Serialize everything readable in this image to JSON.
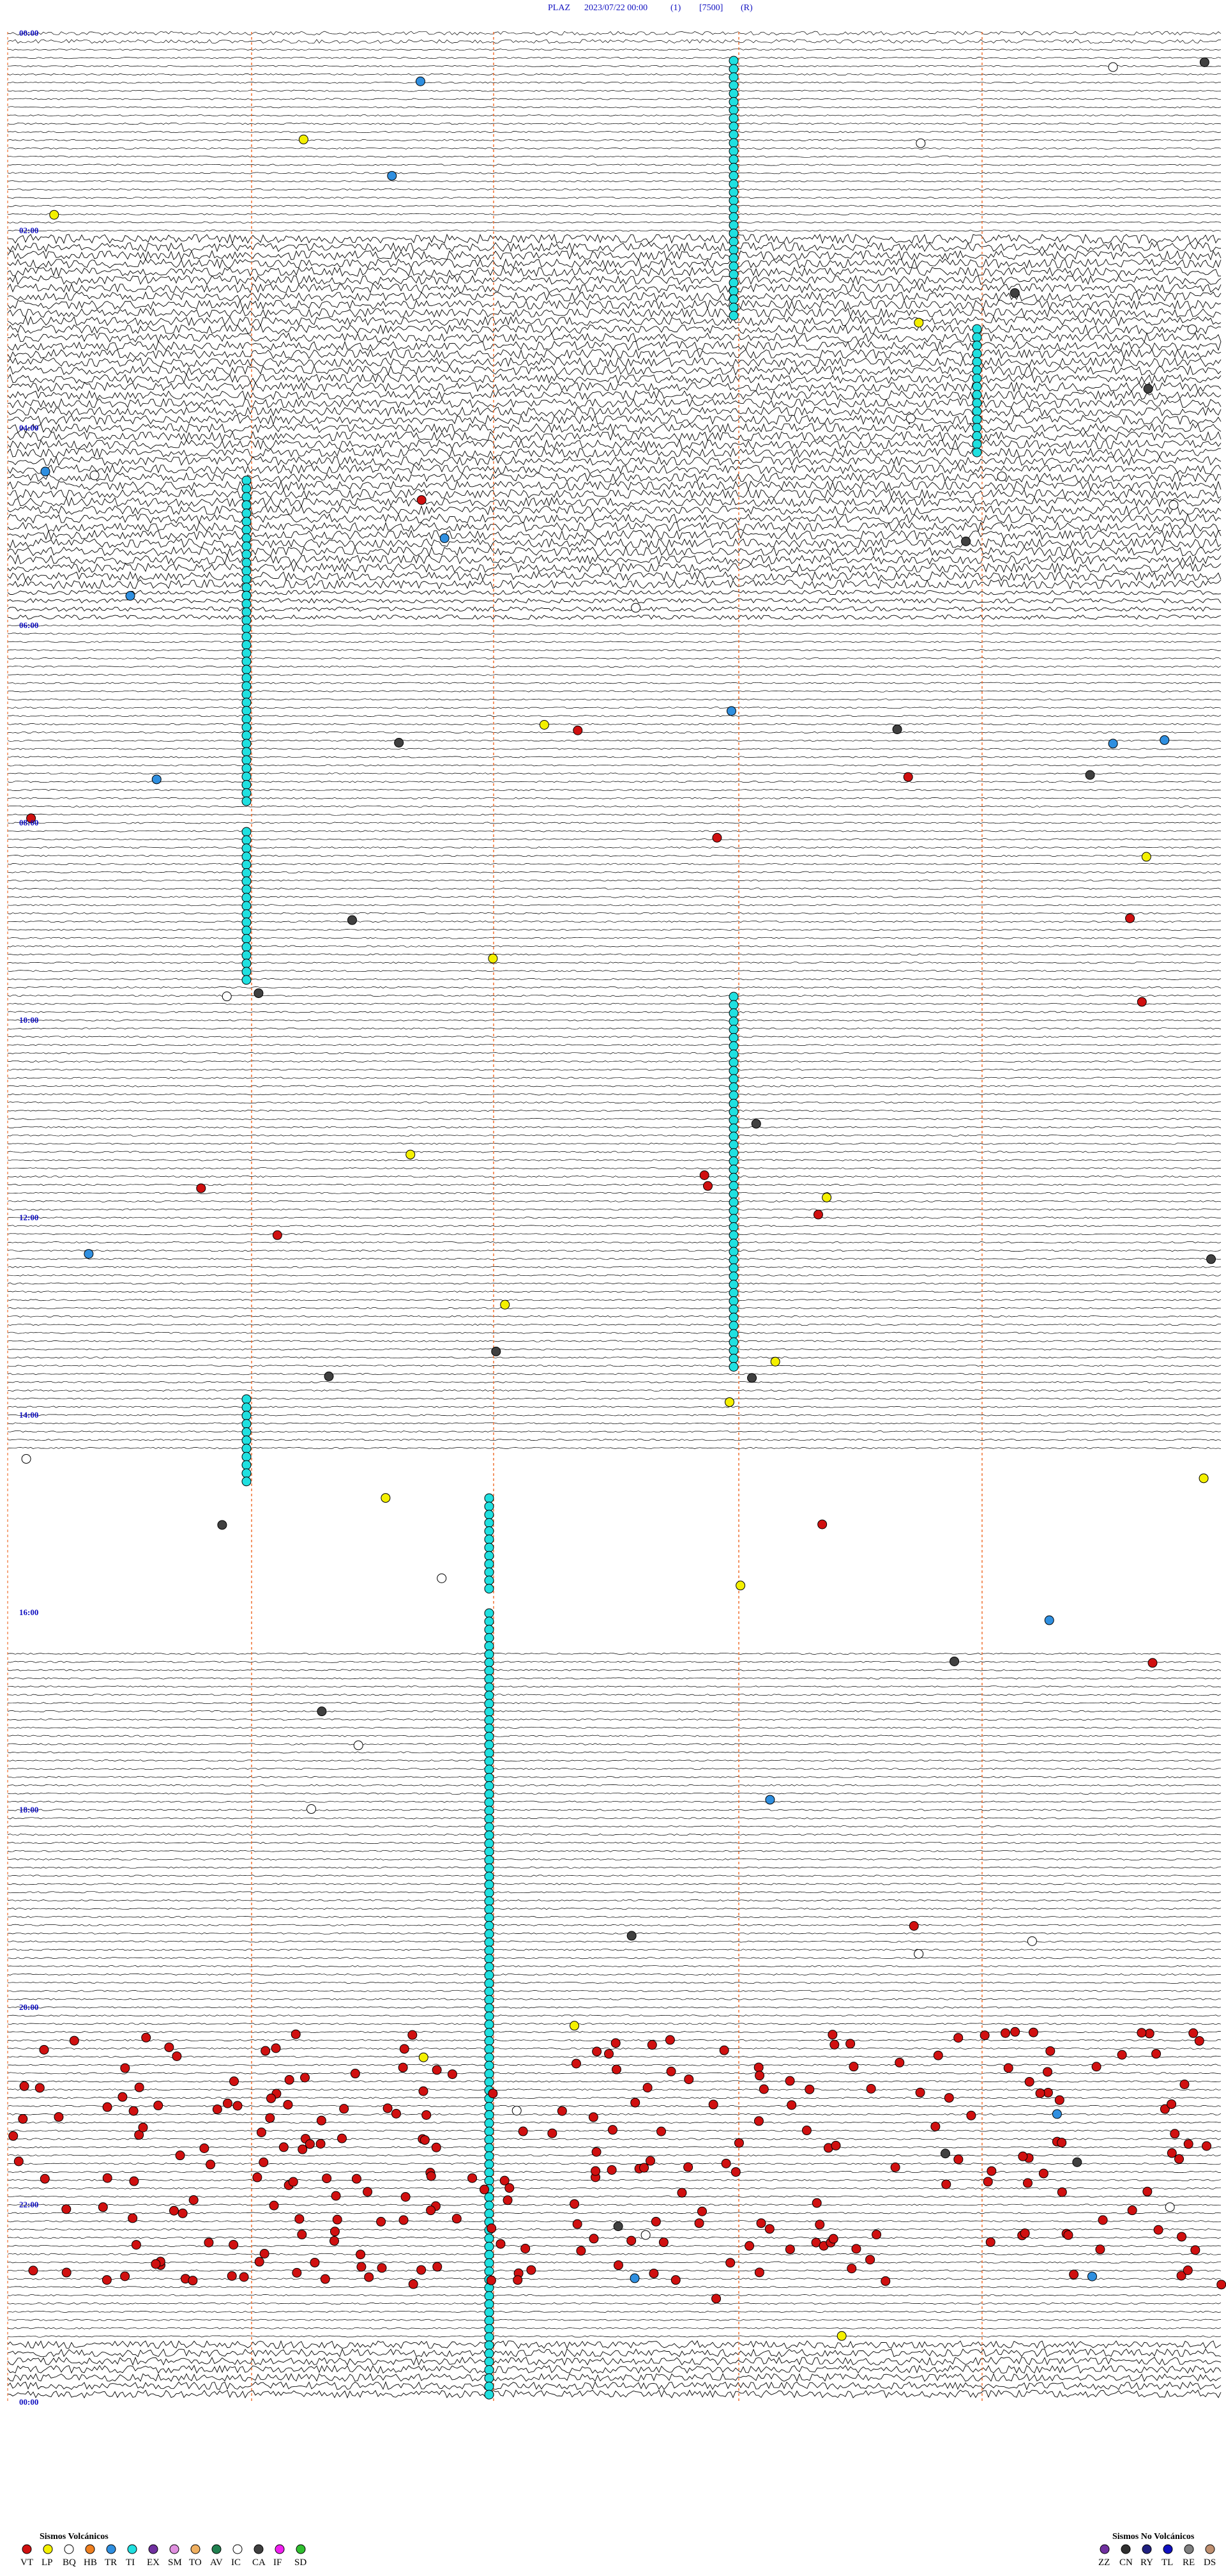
{
  "header": {
    "station": "PLAZ",
    "datetime": "2023/07/22 00:00",
    "channel": "(1)",
    "scale": "[7500]",
    "mode": "(R)"
  },
  "time_labels": [
    "00:00",
    "02:00",
    "04:00",
    "06:00",
    "08:00",
    "10:00",
    "12:00",
    "14:00",
    "16:00",
    "18:00",
    "20:00",
    "22:00",
    "00:00"
  ],
  "legend": {
    "volcanic": {
      "title": "Sismos Volcánicos",
      "items": [
        {
          "label": "VT",
          "color": "#d01010"
        },
        {
          "label": "LP",
          "color": "#f4f000"
        },
        {
          "label": "BQ",
          "color": "#ffffff"
        },
        {
          "label": "HB",
          "color": "#f08020"
        },
        {
          "label": "TR",
          "color": "#2f8fe0"
        },
        {
          "label": "TI",
          "color": "#20e0e0"
        },
        {
          "label": "EX",
          "color": "#7030a0"
        },
        {
          "label": "SM",
          "color": "#e090e0"
        },
        {
          "label": "TO",
          "color": "#f0b060"
        },
        {
          "label": "AV",
          "color": "#208050"
        },
        {
          "label": "IC",
          "color": "#ffffff"
        },
        {
          "label": "CA",
          "color": "#404040"
        },
        {
          "label": "IF",
          "color": "#f020f0"
        },
        {
          "label": "SD",
          "color": "#30c030"
        }
      ]
    },
    "non_volcanic": {
      "title": "Sismos No Volcánicos",
      "items": [
        {
          "label": "ZZ",
          "color": "#7030a0"
        },
        {
          "label": "CN",
          "color": "#303030"
        },
        {
          "label": "RY",
          "color": "#202080"
        },
        {
          "label": "TL",
          "color": "#1010c0"
        },
        {
          "label": "RE",
          "color": "#808080"
        },
        {
          "label": "DS",
          "color": "#c09070"
        }
      ]
    }
  }
}
